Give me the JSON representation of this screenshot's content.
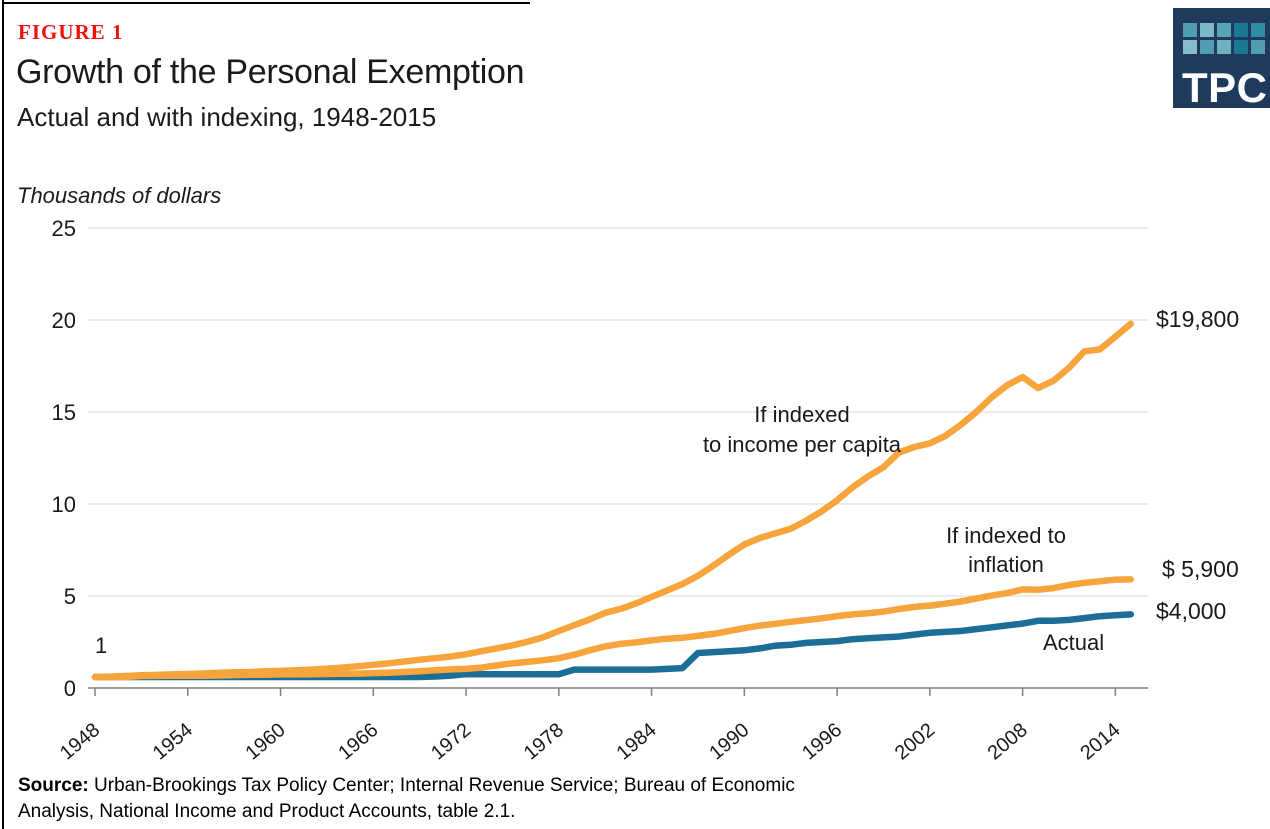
{
  "header": {
    "figure_label": "FIGURE 1",
    "title": "Growth of the Personal Exemption",
    "subtitle": "Actual and with indexing, 1948-2015"
  },
  "logo": {
    "text": "TPC",
    "background": "#1f3a5c",
    "square_colors": [
      "#4f9db1",
      "#7db8c5",
      "#58a5b6",
      "#1a7892",
      "#2e8da2",
      "#85bcc8",
      "#4f9db1",
      "#6fb0bf",
      "#1a7892",
      "#4f9db1"
    ]
  },
  "chart_data": {
    "type": "line",
    "axis_title": "Thousands of dollars",
    "x": [
      1948,
      1949,
      1950,
      1951,
      1952,
      1953,
      1954,
      1955,
      1956,
      1957,
      1958,
      1959,
      1960,
      1961,
      1962,
      1963,
      1964,
      1965,
      1966,
      1967,
      1968,
      1969,
      1970,
      1971,
      1972,
      1973,
      1974,
      1975,
      1976,
      1977,
      1978,
      1979,
      1980,
      1981,
      1982,
      1983,
      1984,
      1985,
      1986,
      1987,
      1988,
      1989,
      1990,
      1991,
      1992,
      1993,
      1994,
      1995,
      1996,
      1997,
      1998,
      1999,
      2000,
      2001,
      2002,
      2003,
      2004,
      2005,
      2006,
      2007,
      2008,
      2009,
      2010,
      2011,
      2012,
      2013,
      2014,
      2015
    ],
    "x_ticks": [
      1948,
      1954,
      1960,
      1966,
      1972,
      1978,
      1984,
      1990,
      1996,
      2002,
      2008,
      2014
    ],
    "y_ticks": [
      0,
      5,
      10,
      15,
      20,
      25
    ],
    "ylim": [
      0,
      25
    ],
    "xlim": [
      1948,
      2015
    ],
    "grid": "horizontal",
    "legend": "inline-annotations",
    "series": [
      {
        "name": "If indexed to income per capita",
        "color": "#f7a43c",
        "end_label": "$19,800",
        "values": [
          0.6,
          0.62,
          0.65,
          0.69,
          0.71,
          0.74,
          0.76,
          0.79,
          0.83,
          0.86,
          0.87,
          0.91,
          0.93,
          0.96,
          1.0,
          1.05,
          1.11,
          1.18,
          1.26,
          1.34,
          1.44,
          1.54,
          1.62,
          1.71,
          1.83,
          2.0,
          2.16,
          2.32,
          2.52,
          2.76,
          3.1,
          3.42,
          3.73,
          4.08,
          4.3,
          4.6,
          4.95,
          5.3,
          5.65,
          6.1,
          6.65,
          7.25,
          7.8,
          8.15,
          8.4,
          8.65,
          9.1,
          9.6,
          10.2,
          10.9,
          11.5,
          12.0,
          12.8,
          13.1,
          13.3,
          13.7,
          14.3,
          15.0,
          15.8,
          16.45,
          16.9,
          16.3,
          16.7,
          17.4,
          18.3,
          18.4,
          19.1,
          19.8
        ]
      },
      {
        "name": "If indexed to inflation",
        "color": "#f7a43c",
        "end_label": "$ 5,900",
        "values": [
          0.6,
          0.59,
          0.6,
          0.65,
          0.66,
          0.67,
          0.67,
          0.67,
          0.68,
          0.7,
          0.72,
          0.72,
          0.74,
          0.74,
          0.75,
          0.76,
          0.77,
          0.78,
          0.81,
          0.83,
          0.87,
          0.91,
          0.97,
          1.01,
          1.04,
          1.11,
          1.23,
          1.34,
          1.42,
          1.51,
          1.62,
          1.81,
          2.05,
          2.26,
          2.4,
          2.48,
          2.59,
          2.68,
          2.73,
          2.83,
          2.94,
          3.09,
          3.25,
          3.39,
          3.49,
          3.6,
          3.69,
          3.79,
          3.91,
          4.0,
          4.06,
          4.15,
          4.29,
          4.41,
          4.48,
          4.58,
          4.7,
          4.86,
          5.02,
          5.16,
          5.36,
          5.34,
          5.43,
          5.6,
          5.72,
          5.8,
          5.89,
          5.9
        ]
      },
      {
        "name": "Actual",
        "color": "#1d6e96",
        "end_label": "$4,000",
        "values": [
          0.6,
          0.6,
          0.6,
          0.6,
          0.6,
          0.6,
          0.6,
          0.6,
          0.6,
          0.6,
          0.6,
          0.6,
          0.6,
          0.6,
          0.6,
          0.6,
          0.6,
          0.6,
          0.6,
          0.6,
          0.6,
          0.6,
          0.625,
          0.675,
          0.75,
          0.75,
          0.75,
          0.75,
          0.75,
          0.75,
          0.75,
          1.0,
          1.0,
          1.0,
          1.0,
          1.0,
          1.0,
          1.04,
          1.08,
          1.9,
          1.95,
          2.0,
          2.05,
          2.15,
          2.3,
          2.35,
          2.45,
          2.5,
          2.55,
          2.65,
          2.7,
          2.75,
          2.8,
          2.9,
          3.0,
          3.05,
          3.1,
          3.2,
          3.3,
          3.4,
          3.5,
          3.65,
          3.65,
          3.7,
          3.8,
          3.9,
          3.95,
          4.0
        ]
      }
    ],
    "annotations": {
      "start_value": "1",
      "income_line1": "If indexed",
      "income_line2": "to income per capita",
      "inflation_line1": "If indexed to",
      "inflation_line2": "inflation",
      "actual": "Actual"
    },
    "style": {
      "grid_color": "#d9d9d9",
      "axis_color": "#7f7f7f",
      "line_width": 6.5
    }
  },
  "source": {
    "label": "Source:",
    "line1": " Urban-Brookings Tax Policy Center; Internal Revenue Service; Bureau of Economic",
    "line2": "Analysis, National Income and Product Accounts, table 2.1."
  },
  "colors": {
    "figure_label_red": "#f0100a",
    "orange_series": "#f7a43c",
    "blue_series": "#1d6e96",
    "logo_navy": "#1f3a5c"
  }
}
